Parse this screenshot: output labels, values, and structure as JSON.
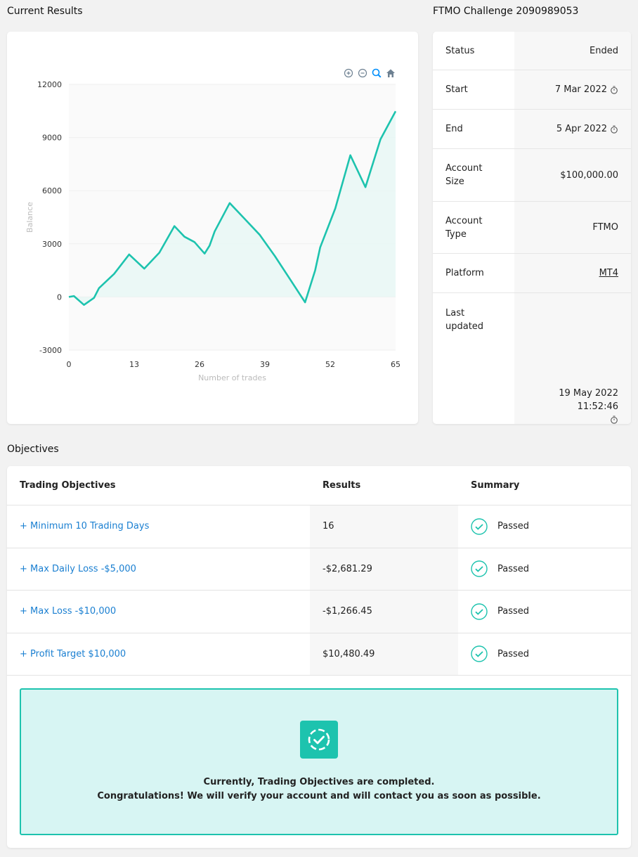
{
  "titles": {
    "current_results": "Current Results",
    "challenge": "FTMO Challenge 2090989053",
    "objectives": "Objectives"
  },
  "chart_toolbar": [
    "zoom-in-icon",
    "zoom-out-icon",
    "zoom-select-icon",
    "home-icon"
  ],
  "chart_data": {
    "type": "area",
    "xlabel": "Number of trades",
    "ylabel": "Balance",
    "xlim": [
      0,
      65
    ],
    "ylim": [
      -3000,
      12000
    ],
    "x_ticks": [
      0,
      13,
      26,
      39,
      52,
      65
    ],
    "y_ticks": [
      12000,
      9000,
      6000,
      3000,
      0,
      -3000
    ],
    "grid": true,
    "line_color": "#1dc3ae",
    "fill_color": "#e8f7f4",
    "x": [
      0,
      1,
      3,
      5,
      6,
      9,
      12,
      15,
      18,
      21,
      23,
      25,
      27,
      28,
      29,
      32,
      35,
      38,
      41,
      44,
      47,
      49,
      50,
      53,
      56,
      59,
      62,
      65
    ],
    "y": [
      0,
      50,
      -450,
      -50,
      500,
      1300,
      2400,
      1600,
      2500,
      4000,
      3400,
      3100,
      2450,
      2900,
      3700,
      5300,
      4400,
      3500,
      2300,
      1000,
      -300,
      1500,
      2800,
      5000,
      8000,
      6200,
      8900,
      10480
    ]
  },
  "info": {
    "rows": [
      {
        "label": "Status",
        "value": "Ended"
      },
      {
        "label": "Start",
        "value": "7 Mar 2022"
      },
      {
        "label": "End",
        "value": "5 Apr 2022"
      },
      {
        "label": "Account Size",
        "value": "$100,000.00"
      },
      {
        "label": "Account Type",
        "value": "FTMO"
      },
      {
        "label": "Platform",
        "value": "MT4"
      },
      {
        "label": "Last updated",
        "value": "19 May 2022 11:52:46"
      }
    ]
  },
  "objectives": {
    "headers": [
      "Trading Objectives",
      "Results",
      "Summary"
    ],
    "rows": [
      {
        "name": "+ Minimum 10 Trading Days",
        "result": "16",
        "summary": "Passed"
      },
      {
        "name": "+ Max Daily Loss -$5,000",
        "result": "-$2,681.29",
        "summary": "Passed"
      },
      {
        "name": "+ Max Loss -$10,000",
        "result": "-$1,266.45",
        "summary": "Passed"
      },
      {
        "name": "+ Profit Target $10,000",
        "result": "$10,480.49",
        "summary": "Passed"
      }
    ],
    "success_line1": "Currently, Trading Objectives are completed.",
    "success_line2": "Congratulations! We will verify your account and will contact you as soon as possible."
  }
}
